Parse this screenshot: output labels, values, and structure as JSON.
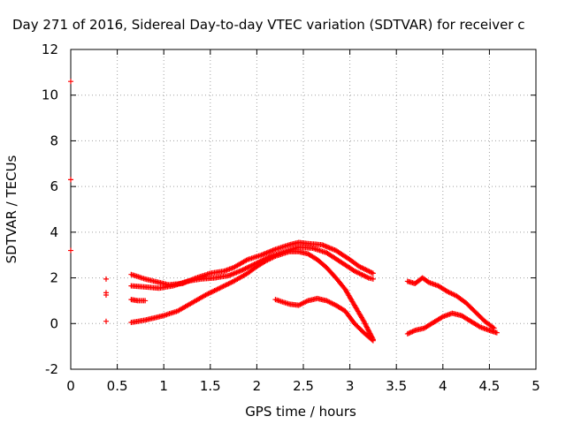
{
  "chart_data": {
    "type": "scatter",
    "title": "Day 271 of 2016, Sidereal Day-to-day VTEC variation (SDTVAR) for receiver c",
    "xlabel": "GPS time / hours",
    "ylabel": "SDTVAR / TECUs",
    "xlim": [
      0,
      5
    ],
    "ylim": [
      -2,
      12
    ],
    "xticks": [
      "0",
      "0.5",
      "1",
      "1.5",
      "2",
      "2.5",
      "3",
      "3.5",
      "4",
      "4.5",
      "5"
    ],
    "yticks": [
      "-2",
      "0",
      "2",
      "4",
      "6",
      "8",
      "10",
      "12"
    ],
    "grid": true,
    "marker_color": "#ff0000",
    "series": [
      {
        "name": "edge-markers",
        "kind": "points",
        "points": [
          [
            0,
            10.6
          ],
          [
            0,
            6.3
          ],
          [
            0,
            3.2
          ]
        ]
      },
      {
        "name": "early-isolated",
        "kind": "points",
        "points": [
          [
            0.38,
            1.95
          ],
          [
            0.38,
            1.35
          ],
          [
            0.38,
            1.25
          ],
          [
            0.38,
            0.1
          ]
        ]
      },
      {
        "name": "track-a-lower",
        "kind": "curve",
        "points": [
          [
            0.65,
            0.05
          ],
          [
            0.8,
            0.15
          ],
          [
            1.0,
            0.35
          ],
          [
            1.15,
            0.55
          ],
          [
            1.3,
            0.9
          ],
          [
            1.45,
            1.25
          ],
          [
            1.6,
            1.55
          ],
          [
            1.75,
            1.85
          ],
          [
            1.9,
            2.2
          ],
          [
            2.0,
            2.5
          ],
          [
            2.1,
            2.75
          ],
          [
            2.2,
            2.95
          ],
          [
            2.35,
            3.15
          ],
          [
            2.45,
            3.15
          ],
          [
            2.55,
            3.05
          ],
          [
            2.65,
            2.8
          ],
          [
            2.75,
            2.45
          ],
          [
            2.85,
            2.0
          ],
          [
            2.95,
            1.5
          ],
          [
            3.05,
            0.8
          ],
          [
            3.15,
            0.1
          ],
          [
            3.25,
            -0.7
          ]
        ]
      },
      {
        "name": "track-b-upper",
        "kind": "curve",
        "points": [
          [
            0.65,
            2.15
          ],
          [
            0.8,
            1.95
          ],
          [
            0.95,
            1.8
          ],
          [
            1.05,
            1.7
          ],
          [
            1.2,
            1.75
          ],
          [
            1.35,
            2.0
          ],
          [
            1.5,
            2.2
          ],
          [
            1.65,
            2.3
          ],
          [
            1.75,
            2.45
          ],
          [
            1.9,
            2.8
          ],
          [
            2.05,
            3.0
          ],
          [
            2.2,
            3.25
          ],
          [
            2.35,
            3.45
          ],
          [
            2.45,
            3.55
          ],
          [
            2.55,
            3.5
          ],
          [
            2.7,
            3.45
          ],
          [
            2.85,
            3.2
          ],
          [
            3.0,
            2.8
          ],
          [
            3.1,
            2.5
          ],
          [
            3.25,
            2.2
          ]
        ]
      },
      {
        "name": "track-c-middle",
        "kind": "curve",
        "points": [
          [
            0.65,
            1.65
          ],
          [
            0.8,
            1.6
          ],
          [
            0.95,
            1.55
          ],
          [
            1.1,
            1.65
          ],
          [
            1.25,
            1.85
          ],
          [
            1.4,
            1.95
          ],
          [
            1.55,
            2.0
          ],
          [
            1.7,
            2.1
          ],
          [
            1.85,
            2.35
          ],
          [
            2.0,
            2.65
          ],
          [
            2.15,
            2.95
          ],
          [
            2.3,
            3.15
          ],
          [
            2.45,
            3.35
          ],
          [
            2.6,
            3.3
          ],
          [
            2.75,
            3.1
          ],
          [
            2.9,
            2.7
          ],
          [
            3.05,
            2.3
          ],
          [
            3.2,
            2.0
          ],
          [
            3.25,
            1.95
          ]
        ]
      },
      {
        "name": "track-d-short",
        "kind": "curve",
        "points": [
          [
            0.65,
            1.05
          ],
          [
            0.72,
            1.0
          ],
          [
            0.8,
            1.0
          ]
        ]
      },
      {
        "name": "track-e-hump",
        "kind": "curve",
        "points": [
          [
            2.2,
            1.05
          ],
          [
            2.35,
            0.85
          ],
          [
            2.45,
            0.8
          ],
          [
            2.55,
            1.0
          ],
          [
            2.65,
            1.1
          ],
          [
            2.75,
            1.0
          ],
          [
            2.85,
            0.8
          ],
          [
            2.95,
            0.55
          ],
          [
            3.05,
            0.0
          ],
          [
            3.15,
            -0.4
          ],
          [
            3.25,
            -0.75
          ]
        ]
      },
      {
        "name": "track-f-late-upper",
        "kind": "curve",
        "points": [
          [
            3.62,
            1.85
          ],
          [
            3.7,
            1.75
          ],
          [
            3.78,
            2.0
          ],
          [
            3.85,
            1.8
          ],
          [
            3.95,
            1.65
          ],
          [
            4.05,
            1.4
          ],
          [
            4.15,
            1.2
          ],
          [
            4.25,
            0.9
          ],
          [
            4.35,
            0.5
          ],
          [
            4.45,
            0.1
          ],
          [
            4.55,
            -0.2
          ]
        ]
      },
      {
        "name": "track-g-late-lower",
        "kind": "curve",
        "points": [
          [
            3.62,
            -0.45
          ],
          [
            3.7,
            -0.3
          ],
          [
            3.8,
            -0.2
          ],
          [
            3.9,
            0.05
          ],
          [
            4.0,
            0.3
          ],
          [
            4.1,
            0.45
          ],
          [
            4.2,
            0.35
          ],
          [
            4.3,
            0.1
          ],
          [
            4.4,
            -0.15
          ],
          [
            4.5,
            -0.3
          ],
          [
            4.58,
            -0.4
          ]
        ]
      }
    ]
  }
}
